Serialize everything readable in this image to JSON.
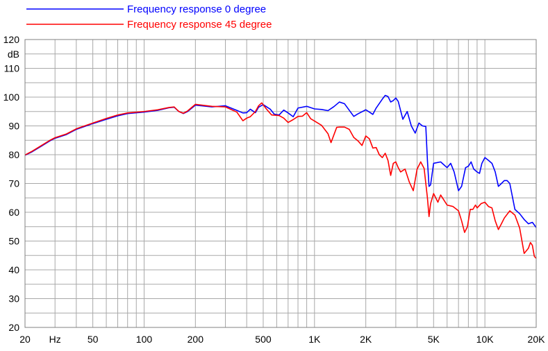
{
  "chart_data": {
    "type": "line",
    "title": "",
    "xlabel": "Hz",
    "ylabel": "dB",
    "xscale": "log",
    "xlim": [
      20,
      20000
    ],
    "ylim": [
      20,
      120
    ],
    "grid": true,
    "legend_position": "top-left",
    "x_tick_labels": [
      "20",
      "Hz",
      "50",
      "100",
      "200",
      "500",
      "1K",
      "2K",
      "5K",
      "10K",
      "20K"
    ],
    "y_tick_labels": [
      "120",
      "dB",
      "110",
      "100",
      "90",
      "80",
      "70",
      "60",
      "50",
      "40",
      "30",
      "20"
    ],
    "series": [
      {
        "name": "Frequency response 0 degree",
        "color": "#0000ff",
        "points": [
          [
            20,
            79.8
          ],
          [
            22,
            81
          ],
          [
            25,
            83
          ],
          [
            28,
            84.8
          ],
          [
            30,
            85.7
          ],
          [
            35,
            87
          ],
          [
            40,
            88.8
          ],
          [
            50,
            90.8
          ],
          [
            60,
            92.3
          ],
          [
            70,
            93.5
          ],
          [
            80,
            94.3
          ],
          [
            100,
            94.8
          ],
          [
            120,
            95.4
          ],
          [
            140,
            96.3
          ],
          [
            150,
            96.5
          ],
          [
            160,
            95
          ],
          [
            170,
            94.3
          ],
          [
            180,
            95
          ],
          [
            200,
            97.2
          ],
          [
            250,
            96.6
          ],
          [
            300,
            97
          ],
          [
            350,
            95.4
          ],
          [
            380,
            94.5
          ],
          [
            400,
            94.6
          ],
          [
            420,
            95.8
          ],
          [
            450,
            94.6
          ],
          [
            470,
            96.5
          ],
          [
            500,
            97.4
          ],
          [
            550,
            95.8
          ],
          [
            580,
            94.1
          ],
          [
            620,
            93.8
          ],
          [
            660,
            95.5
          ],
          [
            700,
            94.5
          ],
          [
            750,
            93.2
          ],
          [
            800,
            96.2
          ],
          [
            900,
            96.8
          ],
          [
            1000,
            95.9
          ],
          [
            1100,
            95.7
          ],
          [
            1200,
            95.3
          ],
          [
            1300,
            96.7
          ],
          [
            1400,
            98.3
          ],
          [
            1500,
            97.7
          ],
          [
            1700,
            93.3
          ],
          [
            1800,
            94.2
          ],
          [
            2000,
            95.6
          ],
          [
            2100,
            94.8
          ],
          [
            2200,
            94
          ],
          [
            2300,
            96.2
          ],
          [
            2500,
            99.3
          ],
          [
            2600,
            100.6
          ],
          [
            2700,
            100.2
          ],
          [
            2800,
            98.3
          ],
          [
            2900,
            98.8
          ],
          [
            3000,
            99.7
          ],
          [
            3100,
            98.5
          ],
          [
            3300,
            92.3
          ],
          [
            3500,
            95
          ],
          [
            3700,
            90
          ],
          [
            3900,
            87.5
          ],
          [
            4100,
            91
          ],
          [
            4300,
            90
          ],
          [
            4500,
            89.8
          ],
          [
            4600,
            78
          ],
          [
            4700,
            69
          ],
          [
            4800,
            69.5
          ],
          [
            5000,
            77
          ],
          [
            5500,
            77.5
          ],
          [
            6000,
            75.5
          ],
          [
            6300,
            77
          ],
          [
            6600,
            74
          ],
          [
            7000,
            67.5
          ],
          [
            7300,
            69
          ],
          [
            7700,
            75.5
          ],
          [
            8000,
            76
          ],
          [
            8300,
            77.5
          ],
          [
            8600,
            75
          ],
          [
            9000,
            74
          ],
          [
            9300,
            73.5
          ],
          [
            9600,
            77
          ],
          [
            10000,
            79
          ],
          [
            10500,
            78
          ],
          [
            11000,
            77
          ],
          [
            11500,
            74
          ],
          [
            12000,
            69
          ],
          [
            12500,
            70
          ],
          [
            13000,
            71
          ],
          [
            13500,
            71
          ],
          [
            14000,
            70
          ],
          [
            15000,
            61
          ],
          [
            16000,
            59.5
          ],
          [
            17000,
            57.5
          ],
          [
            18000,
            56
          ],
          [
            19000,
            56.5
          ],
          [
            20000,
            54.7
          ]
        ]
      },
      {
        "name": "Frequency response 45 degree",
        "color": "#ff0000",
        "points": [
          [
            20,
            79.9
          ],
          [
            22,
            81.2
          ],
          [
            25,
            83.2
          ],
          [
            28,
            85
          ],
          [
            30,
            85.9
          ],
          [
            35,
            87.2
          ],
          [
            40,
            89
          ],
          [
            50,
            91
          ],
          [
            60,
            92.6
          ],
          [
            70,
            93.8
          ],
          [
            80,
            94.5
          ],
          [
            100,
            95
          ],
          [
            120,
            95.6
          ],
          [
            140,
            96.4
          ],
          [
            150,
            96.6
          ],
          [
            160,
            95
          ],
          [
            170,
            94.4
          ],
          [
            180,
            95.2
          ],
          [
            200,
            97.5
          ],
          [
            250,
            96.8
          ],
          [
            300,
            96.6
          ],
          [
            350,
            94.8
          ],
          [
            380,
            91.8
          ],
          [
            400,
            92.7
          ],
          [
            420,
            93.2
          ],
          [
            450,
            95
          ],
          [
            470,
            97
          ],
          [
            490,
            98
          ],
          [
            520,
            96
          ],
          [
            560,
            93.8
          ],
          [
            620,
            93.6
          ],
          [
            660,
            92.7
          ],
          [
            700,
            91.2
          ],
          [
            750,
            92.2
          ],
          [
            800,
            93.3
          ],
          [
            850,
            93.4
          ],
          [
            900,
            94.6
          ],
          [
            950,
            92.5
          ],
          [
            1000,
            91.7
          ],
          [
            1100,
            90.2
          ],
          [
            1200,
            87.3
          ],
          [
            1250,
            84.2
          ],
          [
            1350,
            89.5
          ],
          [
            1400,
            89.6
          ],
          [
            1500,
            89.6
          ],
          [
            1600,
            88.8
          ],
          [
            1700,
            86
          ],
          [
            1800,
            84.8
          ],
          [
            1900,
            83.2
          ],
          [
            2000,
            86.5
          ],
          [
            2100,
            85.5
          ],
          [
            2200,
            82.3
          ],
          [
            2300,
            82.5
          ],
          [
            2400,
            80
          ],
          [
            2500,
            79
          ],
          [
            2600,
            80.5
          ],
          [
            2700,
            78
          ],
          [
            2800,
            72.8
          ],
          [
            2900,
            77
          ],
          [
            3000,
            77.5
          ],
          [
            3100,
            75.5
          ],
          [
            3200,
            74
          ],
          [
            3400,
            75
          ],
          [
            3600,
            70.5
          ],
          [
            3800,
            67.5
          ],
          [
            4000,
            75
          ],
          [
            4200,
            77.5
          ],
          [
            4400,
            75.2
          ],
          [
            4600,
            65
          ],
          [
            4700,
            58.5
          ],
          [
            4800,
            63
          ],
          [
            5000,
            66.5
          ],
          [
            5300,
            63.5
          ],
          [
            5500,
            66
          ],
          [
            6000,
            62.5
          ],
          [
            6500,
            62
          ],
          [
            7000,
            60.5
          ],
          [
            7300,
            57
          ],
          [
            7600,
            53
          ],
          [
            7900,
            55
          ],
          [
            8200,
            61
          ],
          [
            8500,
            61
          ],
          [
            8800,
            62.5
          ],
          [
            9000,
            61.5
          ],
          [
            9500,
            63
          ],
          [
            10000,
            63.5
          ],
          [
            10500,
            62
          ],
          [
            11000,
            61.5
          ],
          [
            11500,
            57
          ],
          [
            12000,
            54
          ],
          [
            12500,
            56
          ],
          [
            13000,
            58
          ],
          [
            14000,
            60.5
          ],
          [
            15000,
            59
          ],
          [
            16000,
            54.5
          ],
          [
            17000,
            45.7
          ],
          [
            18000,
            47.5
          ],
          [
            18500,
            49.5
          ],
          [
            19000,
            48.5
          ],
          [
            19500,
            44.7
          ],
          [
            20000,
            44
          ]
        ]
      }
    ]
  }
}
